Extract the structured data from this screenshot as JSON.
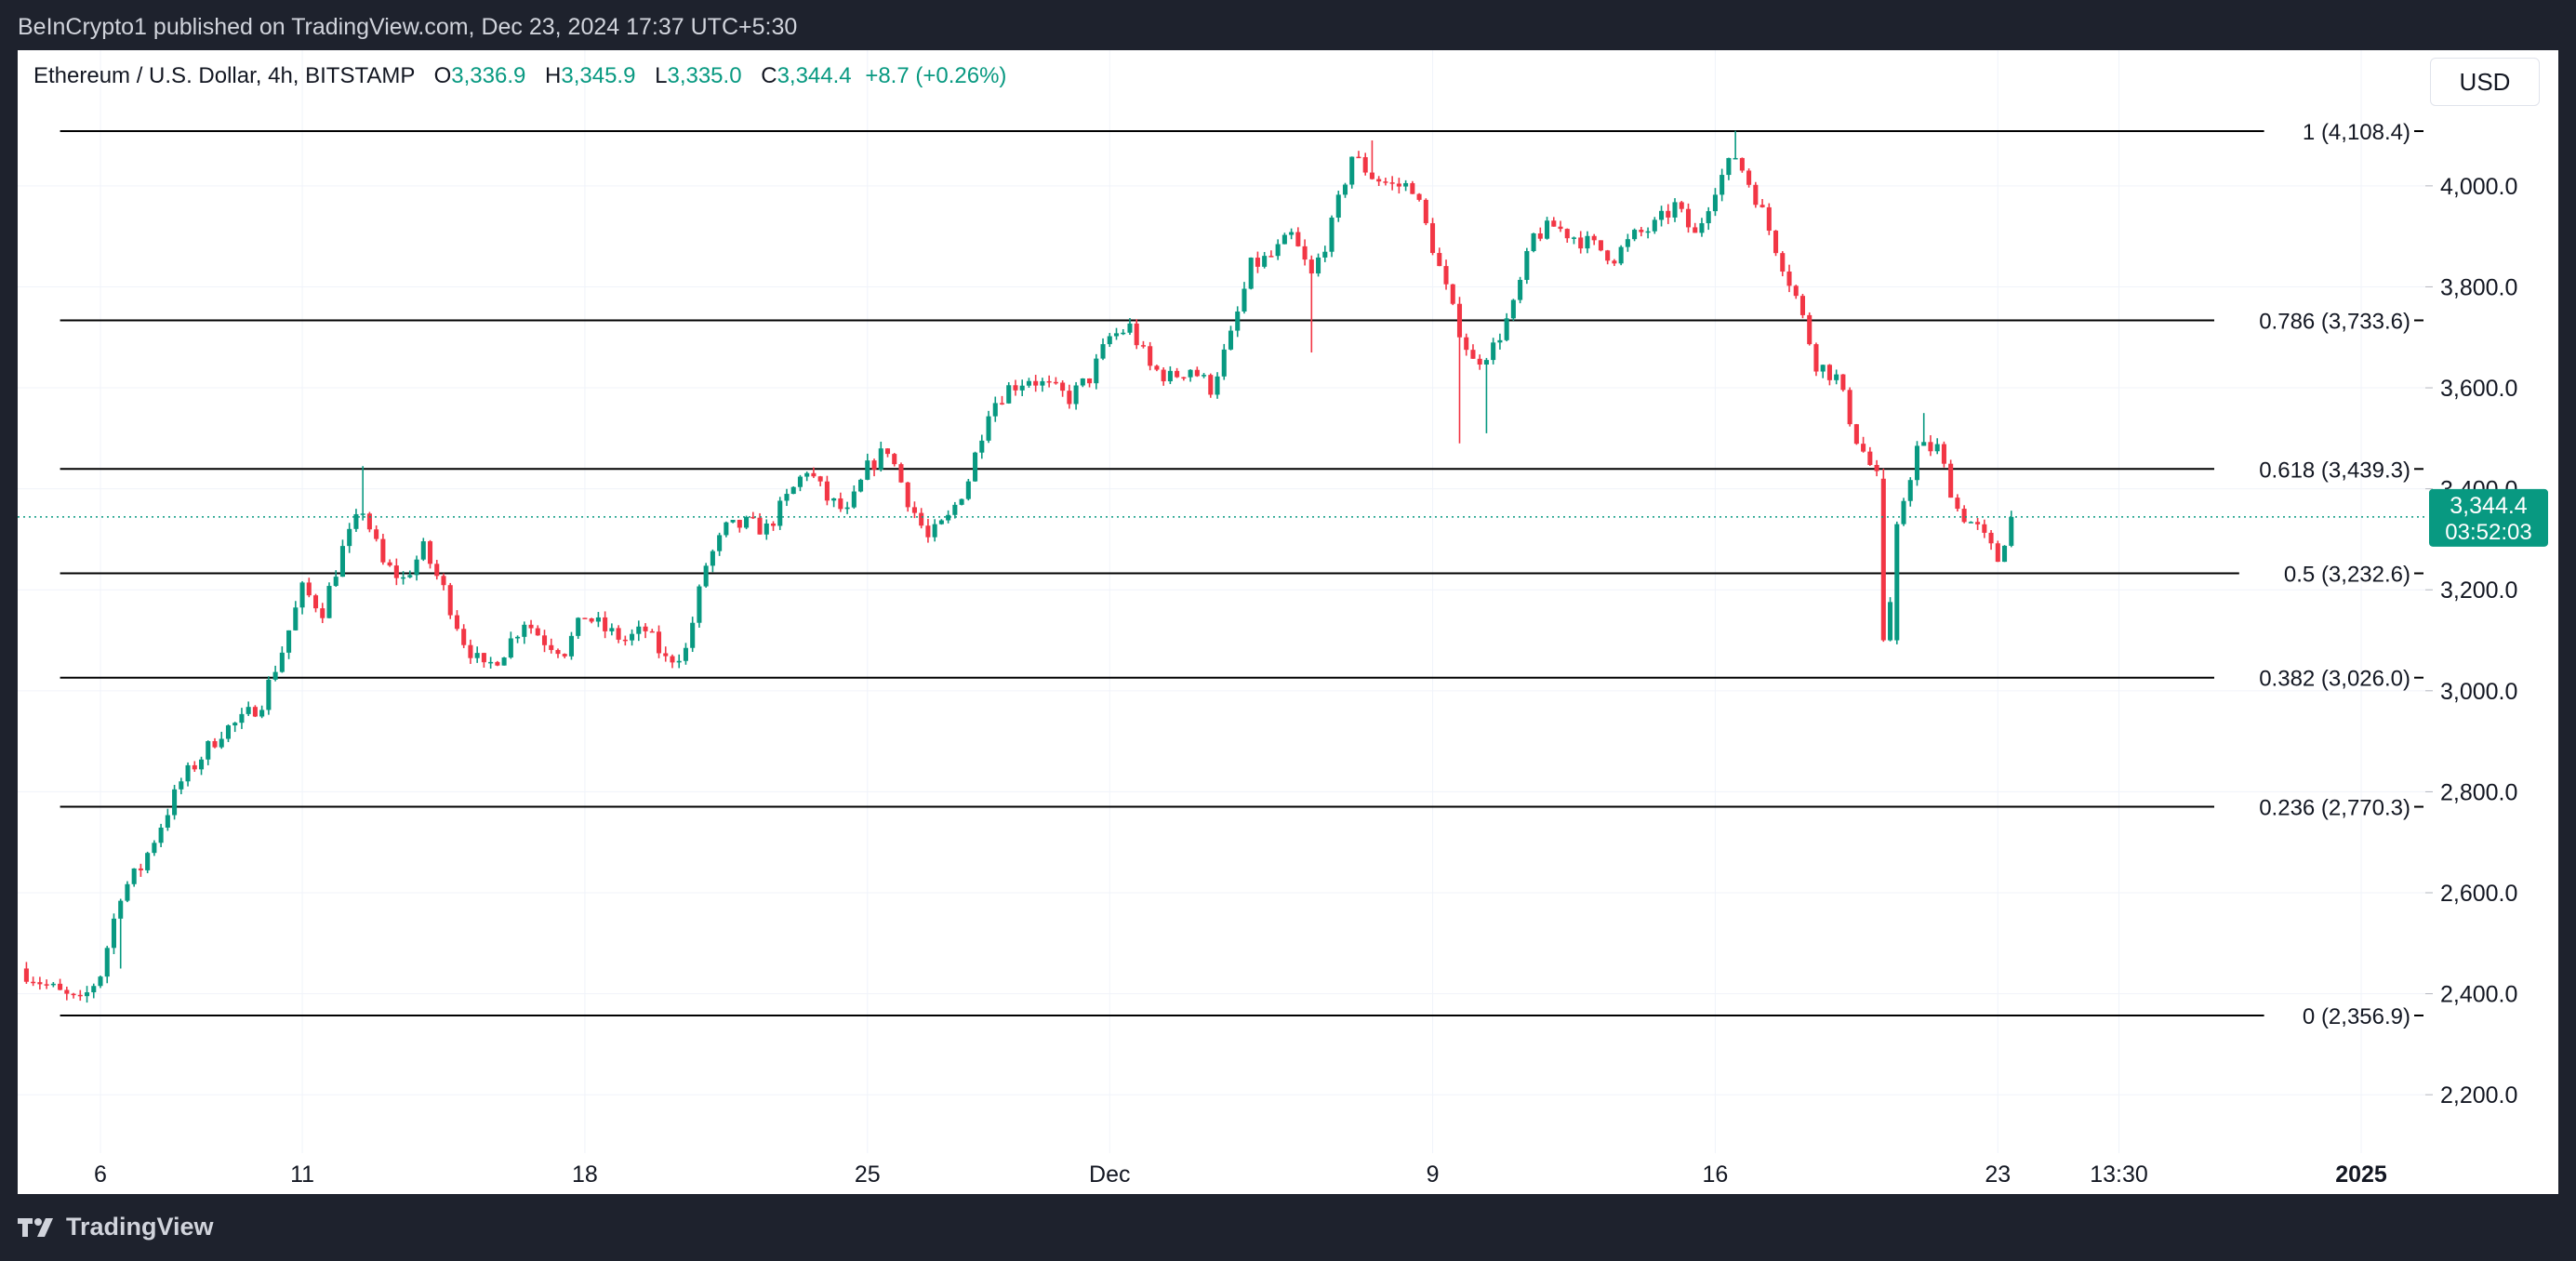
{
  "header": {
    "publisher_line": "BeInCrypto1 published on TradingView.com, Dec 23, 2024 17:37 UTC+5:30"
  },
  "legend": {
    "symbol": "Ethereum / U.S. Dollar, 4h, BITSTAMP",
    "o_label": "O",
    "open": "3,336.9",
    "h_label": "H",
    "high": "3,345.9",
    "l_label": "L",
    "low": "3,335.0",
    "c_label": "C",
    "close": "3,344.4",
    "change": "+8.7 (+0.26%)"
  },
  "currency": "USD",
  "footer": {
    "brand": "TradingView",
    "logo_icon": "tradingview-logo-icon"
  },
  "colors": {
    "up": "#089981",
    "down": "#f23645",
    "background": "#1e222d",
    "panel": "#ffffff",
    "fib_line": "#000000",
    "grid": "#f0f3fa"
  },
  "chart_data": {
    "type": "candlestick",
    "interval": "4h",
    "ylim": [
      2050,
      4330
    ],
    "y_ticks": [
      {
        "value": 2200,
        "label": "2,200.0"
      },
      {
        "value": 2400,
        "label": "2,400.0"
      },
      {
        "value": 2600,
        "label": "2,600.0"
      },
      {
        "value": 2800,
        "label": "2,800.0"
      },
      {
        "value": 3000,
        "label": "3,000.0"
      },
      {
        "value": 3200,
        "label": "3,200.0"
      },
      {
        "value": 3400,
        "label": "3,400.0"
      },
      {
        "value": 3600,
        "label": "3,600.0"
      },
      {
        "value": 3800,
        "label": "3,800.0"
      },
      {
        "value": 4000,
        "label": "4,000.0"
      }
    ],
    "x_ticks": [
      {
        "date": "2024-11-06",
        "label": "6",
        "bold": false
      },
      {
        "date": "2024-11-11",
        "label": "11",
        "bold": false
      },
      {
        "date": "2024-11-18",
        "label": "18",
        "bold": false
      },
      {
        "date": "2024-11-25",
        "label": "25",
        "bold": false
      },
      {
        "date": "2024-12-01",
        "label": "Dec",
        "bold": false
      },
      {
        "date": "2024-12-09",
        "label": "9",
        "bold": false
      },
      {
        "date": "2024-12-16",
        "label": "16",
        "bold": false
      },
      {
        "date": "2024-12-23",
        "label": "23",
        "bold": false
      },
      {
        "date": "2024-12-26",
        "label": "13:30",
        "bold": false
      },
      {
        "date": "2025-01-01",
        "label": "2025",
        "bold": true
      }
    ],
    "fib_levels": [
      {
        "ratio": "1",
        "price": 4108.4,
        "label": "1 (4,108.4)"
      },
      {
        "ratio": "0.786",
        "price": 3733.6,
        "label": "0.786 (3,733.6)"
      },
      {
        "ratio": "0.618",
        "price": 3439.3,
        "label": "0.618 (3,439.3)"
      },
      {
        "ratio": "0.5",
        "price": 3232.6,
        "label": "0.5 (3,232.6)"
      },
      {
        "ratio": "0.382",
        "price": 3026.0,
        "label": "0.382 (3,026.0)"
      },
      {
        "ratio": "0.236",
        "price": 2770.3,
        "label": "0.236 (2,770.3)"
      },
      {
        "ratio": "0",
        "price": 2356.9,
        "label": "0 (2,356.9)"
      }
    ],
    "fib_start": "2024-11-05",
    "last_price": {
      "value": 3344.4,
      "label": "3,344.4",
      "countdown": "03:52:03"
    },
    "anchors": [
      [
        "2024-11-04",
        2450
      ],
      [
        "2024-11-05",
        2400
      ],
      [
        "2024-11-05T12:00",
        2380
      ],
      [
        "2024-11-06",
        2440
      ],
      [
        "2024-11-06T12:00",
        2600
      ],
      [
        "2024-11-07",
        2650
      ],
      [
        "2024-11-08",
        2820
      ],
      [
        "2024-11-08T12:00",
        2870
      ],
      [
        "2024-11-09",
        2920
      ],
      [
        "2024-11-09T12:00",
        2940
      ],
      [
        "2024-11-10",
        2980
      ],
      [
        "2024-11-10T12:00",
        3080
      ],
      [
        "2024-11-11",
        3200
      ],
      [
        "2024-11-11T12:00",
        3160
      ],
      [
        "2024-11-12",
        3280
      ],
      [
        "2024-11-12T12:00",
        3360
      ],
      [
        "2024-11-13",
        3250
      ],
      [
        "2024-11-13T12:00",
        3220
      ],
      [
        "2024-11-14",
        3280
      ],
      [
        "2024-11-14T12:00",
        3200
      ],
      [
        "2024-11-15",
        3100
      ],
      [
        "2024-11-15T12:00",
        3040
      ],
      [
        "2024-11-16",
        3080
      ],
      [
        "2024-11-16T12:00",
        3140
      ],
      [
        "2024-11-17",
        3100
      ],
      [
        "2024-11-17T12:00",
        3080
      ],
      [
        "2024-11-18",
        3150
      ],
      [
        "2024-11-18T12:00",
        3120
      ],
      [
        "2024-11-19",
        3100
      ],
      [
        "2024-11-19T12:00",
        3120
      ],
      [
        "2024-11-20",
        3060
      ],
      [
        "2024-11-20T12:00",
        3080
      ],
      [
        "2024-11-21",
        3250
      ],
      [
        "2024-11-21T12:00",
        3320
      ],
      [
        "2024-11-22",
        3330
      ],
      [
        "2024-11-22T12:00",
        3320
      ],
      [
        "2024-11-23",
        3380
      ],
      [
        "2024-11-23T12:00",
        3440
      ],
      [
        "2024-11-24",
        3380
      ],
      [
        "2024-11-24T12:00",
        3350
      ],
      [
        "2024-11-25",
        3440
      ],
      [
        "2024-11-25T12:00",
        3480
      ],
      [
        "2024-11-26",
        3380
      ],
      [
        "2024-11-26T12:00",
        3300
      ],
      [
        "2024-11-27",
        3340
      ],
      [
        "2024-11-27T12:00",
        3420
      ],
      [
        "2024-11-28",
        3560
      ],
      [
        "2024-11-28T12:00",
        3600
      ],
      [
        "2024-11-29",
        3620
      ],
      [
        "2024-11-29T12:00",
        3600
      ],
      [
        "2024-11-30",
        3580
      ],
      [
        "2024-11-30T12:00",
        3620
      ],
      [
        "2024-12-01",
        3700
      ],
      [
        "2024-12-01T12:00",
        3720
      ],
      [
        "2024-12-02",
        3640
      ],
      [
        "2024-12-02T12:00",
        3620
      ],
      [
        "2024-12-03",
        3640
      ],
      [
        "2024-12-03T12:00",
        3600
      ],
      [
        "2024-12-04",
        3700
      ],
      [
        "2024-12-04T12:00",
        3840
      ],
      [
        "2024-12-05",
        3860
      ],
      [
        "2024-12-05T12:00",
        3900
      ],
      [
        "2024-12-06",
        3820
      ],
      [
        "2024-12-06T12:00",
        3920
      ],
      [
        "2024-12-07",
        4060
      ],
      [
        "2024-12-07T12:00",
        4020
      ],
      [
        "2024-12-08",
        4000
      ],
      [
        "2024-12-08T12:00",
        4000
      ],
      [
        "2024-12-09",
        3880
      ],
      [
        "2024-12-09T12:00",
        3750
      ],
      [
        "2024-12-10",
        3650
      ],
      [
        "2024-12-10T12:00",
        3680
      ],
      [
        "2024-12-11",
        3760
      ],
      [
        "2024-12-11T12:00",
        3900
      ],
      [
        "2024-12-12",
        3920
      ],
      [
        "2024-12-12T12:00",
        3900
      ],
      [
        "2024-12-13",
        3880
      ],
      [
        "2024-12-13T12:00",
        3860
      ],
      [
        "2024-12-14",
        3900
      ],
      [
        "2024-12-14T12:00",
        3920
      ],
      [
        "2024-12-15",
        3960
      ],
      [
        "2024-12-15T12:00",
        3900
      ],
      [
        "2024-12-16",
        4000
      ],
      [
        "2024-12-16T12:00",
        4060
      ],
      [
        "2024-12-17",
        3980
      ],
      [
        "2024-12-17T12:00",
        3880
      ],
      [
        "2024-12-18",
        3780
      ],
      [
        "2024-12-18T12:00",
        3650
      ],
      [
        "2024-12-19",
        3620
      ],
      [
        "2024-12-19T12:00",
        3500
      ],
      [
        "2024-12-20",
        3420
      ],
      [
        "2024-12-20T08:00",
        3160
      ],
      [
        "2024-12-20T16:00",
        3380
      ],
      [
        "2024-12-21",
        3480
      ],
      [
        "2024-12-21T12:00",
        3480
      ],
      [
        "2024-12-22",
        3360
      ],
      [
        "2024-12-22T12:00",
        3320
      ],
      [
        "2024-12-23",
        3260
      ],
      [
        "2024-12-23T08:00",
        3344.4
      ]
    ],
    "spikes": [
      {
        "date": "2024-11-06T12:00",
        "low": 2450
      },
      {
        "date": "2024-11-12T12:00",
        "high": 3445
      },
      {
        "date": "2024-12-06",
        "low": 3670
      },
      {
        "date": "2024-12-07T12:00",
        "high": 4090
      },
      {
        "date": "2024-12-09T16:00",
        "low": 3490
      },
      {
        "date": "2024-12-10T08:00",
        "low": 3510
      },
      {
        "date": "2024-12-16T12:00",
        "high": 4109
      },
      {
        "date": "2024-12-20T04:00",
        "low": 3100
      },
      {
        "date": "2024-12-21T04:00",
        "high": 3550
      }
    ],
    "big_candles": [
      {
        "date": "2024-12-20T04:00",
        "open": 3420,
        "high": 3440,
        "low": 3097,
        "close": 3100
      },
      {
        "date": "2024-12-20T12:00",
        "open": 3100,
        "high": 3335,
        "low": 3092,
        "close": 3330
      }
    ]
  }
}
